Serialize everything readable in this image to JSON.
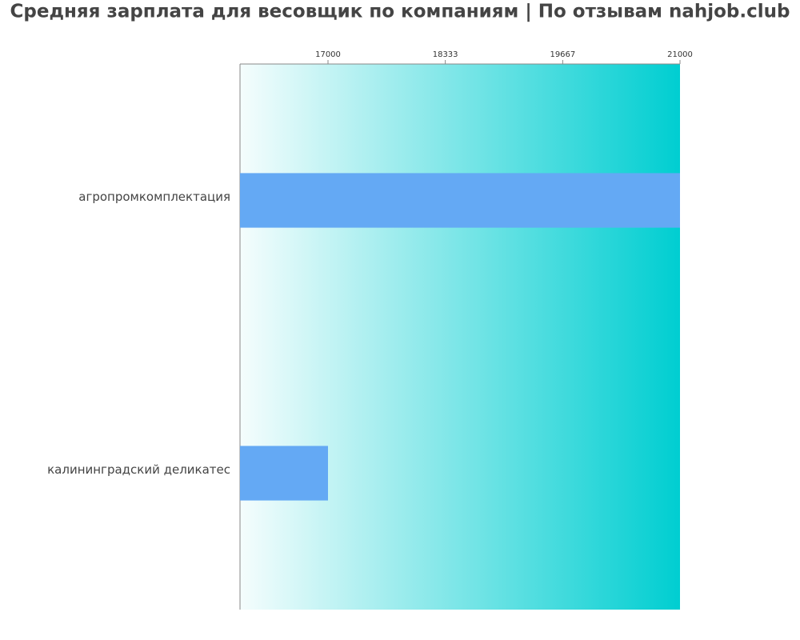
{
  "chart_data": {
    "type": "hbar",
    "title": "Средняя зарплата для весовщик по компаниям  | По отзывам nahjob.club",
    "categories": [
      "агропромкомплектация",
      "калининградский деликатес"
    ],
    "values": [
      21000,
      17000
    ],
    "color": "#64a9f4",
    "xlim": [
      16000,
      21000
    ],
    "xticks": [
      17000,
      18333,
      19667,
      21000
    ]
  }
}
